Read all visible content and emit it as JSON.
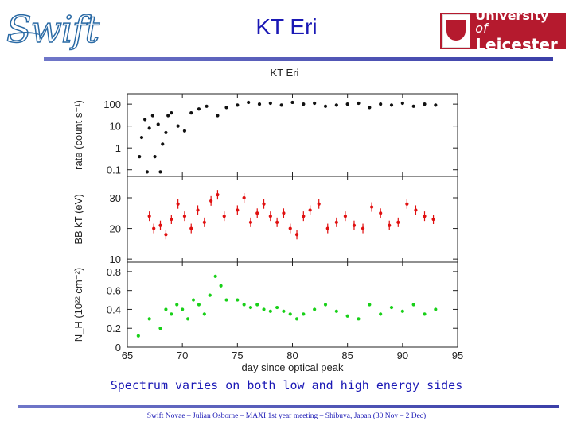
{
  "header": {
    "logo_text": "Swift",
    "title": "KT Eri",
    "university_line1": "University",
    "university_of": "of",
    "university_line2": "Leicester"
  },
  "caption": "Spectrum varies on both low and high energy sides",
  "footer": "Swift Novae – Julian Osborne – MAXI 1st year meeting – Shibuya, Japan (30 Nov – 2 Dec)",
  "colors": {
    "title": "#1a18b5",
    "rate": "#111111",
    "kt": "#e01010",
    "nh": "#18d018"
  },
  "chart_data": {
    "type": "scatter",
    "title": "KT Eri",
    "xlabel": "day since optical peak",
    "xlim": [
      65,
      95
    ],
    "xticks": [
      "65",
      "70",
      "75",
      "80",
      "85",
      "90",
      "95"
    ],
    "panels": [
      {
        "name": "rate",
        "ylabel": "rate (count s⁻¹)",
        "yscale": "log",
        "ylim": [
          0.05,
          300
        ],
        "yticks": [
          "100",
          "10",
          "1",
          "0.1"
        ],
        "color": "#111111",
        "x": [
          66.1,
          66.3,
          66.6,
          66.8,
          67.0,
          67.3,
          67.5,
          67.8,
          68.0,
          68.2,
          68.5,
          68.7,
          69.0,
          69.6,
          70.2,
          70.8,
          71.5,
          72.2,
          73.2,
          74.0,
          75.0,
          76.0,
          77.0,
          78.0,
          79.0,
          80.0,
          81.0,
          82.0,
          83.0,
          84.0,
          85.0,
          86.0,
          87.0,
          88.0,
          89.0,
          90.0,
          91.0,
          92.0,
          93.0
        ],
        "y": [
          0.4,
          3,
          20,
          0.08,
          8,
          30,
          0.4,
          12,
          0.08,
          1.5,
          5,
          30,
          40,
          10,
          6,
          40,
          60,
          80,
          30,
          70,
          90,
          120,
          100,
          110,
          90,
          120,
          100,
          110,
          80,
          90,
          100,
          110,
          70,
          100,
          90,
          110,
          80,
          100,
          90
        ]
      },
      {
        "name": "kT",
        "ylabel": "BB kT (eV)",
        "yscale": "linear",
        "ylim": [
          9,
          37
        ],
        "yticks": [
          "30",
          "20",
          "10"
        ],
        "color": "#e01010",
        "x": [
          67.0,
          67.4,
          68.0,
          68.5,
          69.0,
          69.6,
          70.2,
          70.8,
          71.4,
          72.0,
          72.6,
          73.2,
          73.8,
          75.0,
          75.6,
          76.2,
          76.8,
          77.4,
          78.0,
          78.6,
          79.2,
          79.8,
          80.4,
          81.0,
          81.6,
          82.4,
          83.2,
          84.0,
          84.8,
          85.6,
          86.4,
          87.2,
          88.0,
          88.8,
          89.6,
          90.4,
          91.2,
          92.0,
          92.8
        ],
        "y": [
          24,
          20,
          21,
          18,
          23,
          28,
          24,
          20,
          26,
          22,
          29,
          31,
          24,
          26,
          30,
          22,
          25,
          28,
          24,
          22,
          25,
          20,
          18,
          24,
          26,
          28,
          20,
          22,
          24,
          21,
          20,
          27,
          25,
          21,
          22,
          28,
          26,
          24,
          23
        ]
      },
      {
        "name": "NH",
        "ylabel": "N_H (10²² cm⁻²)",
        "yscale": "linear",
        "ylim": [
          0,
          0.9
        ],
        "yticks": [
          "0.8",
          "0.6",
          "0.4",
          "0.2",
          "0"
        ],
        "color": "#18d018",
        "x": [
          66.0,
          67.0,
          68.0,
          68.5,
          69.0,
          69.5,
          70.0,
          70.5,
          71.0,
          71.5,
          72.0,
          72.5,
          73.0,
          73.5,
          74.0,
          75.0,
          75.6,
          76.2,
          76.8,
          77.4,
          78.0,
          78.6,
          79.2,
          79.8,
          80.4,
          81.0,
          82.0,
          83.0,
          84.0,
          85.0,
          86.0,
          87.0,
          88.0,
          89.0,
          90.0,
          91.0,
          92.0,
          93.0
        ],
        "y": [
          0.12,
          0.3,
          0.2,
          0.4,
          0.35,
          0.45,
          0.4,
          0.3,
          0.5,
          0.45,
          0.35,
          0.55,
          0.75,
          0.65,
          0.5,
          0.5,
          0.45,
          0.42,
          0.45,
          0.4,
          0.38,
          0.42,
          0.38,
          0.35,
          0.3,
          0.35,
          0.4,
          0.45,
          0.38,
          0.33,
          0.3,
          0.45,
          0.35,
          0.42,
          0.38,
          0.45,
          0.35,
          0.4
        ]
      }
    ]
  }
}
